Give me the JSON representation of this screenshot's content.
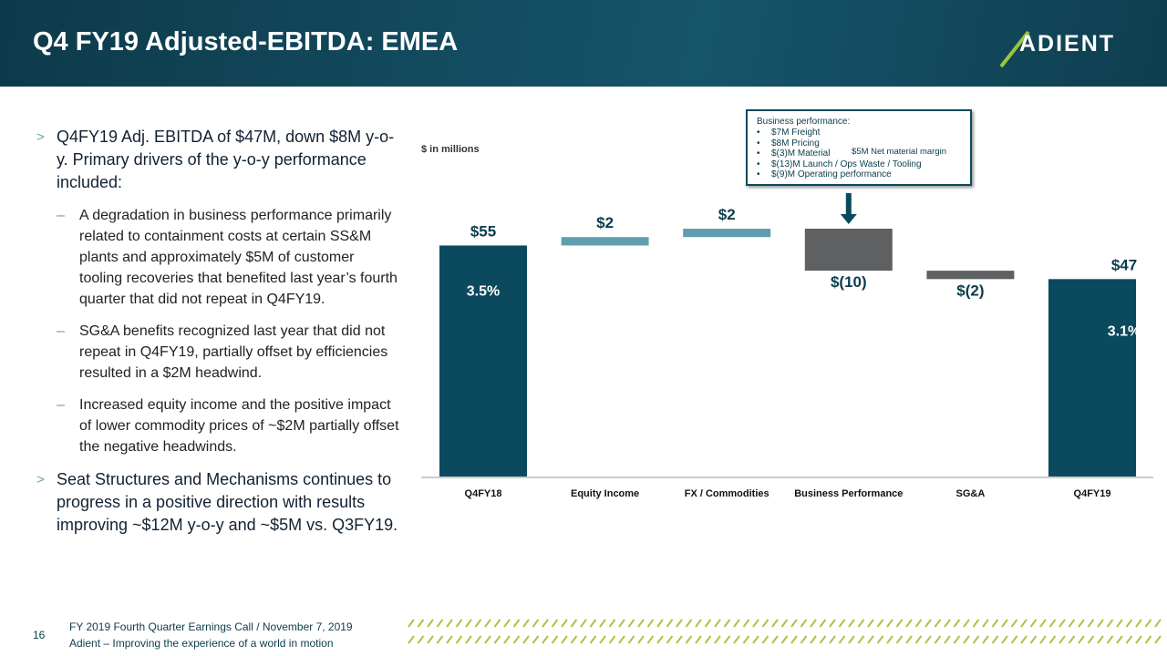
{
  "header": {
    "title": "Q4 FY19 Adjusted-EBITDA: EMEA",
    "logo": "ADIENT"
  },
  "bullets": [
    {
      "text": "Q4FY19 Adj. EBITDA of $47M, down $8M y-o-y.  Primary drivers of the y-o-y performance included:",
      "subs": [
        "A degradation in business performance primarily related to containment costs at certain SS&M plants and approximately $5M of customer tooling recoveries that benefited last year’s fourth quarter that did not repeat in Q4FY19.",
        "SG&A benefits recognized last year that did not repeat in Q4FY19, partially offset by efficiencies resulted in a $2M headwind.",
        "Increased equity income and the positive impact of lower commodity prices of ~$2M partially offset the negative headwinds."
      ]
    },
    {
      "text": "Seat Structures and Mechanisms continues to progress in a positive direction with results improving ~$12M y-o-y and ~$5M vs. Q3FY19.",
      "subs": []
    }
  ],
  "chart_data": {
    "type": "waterfall",
    "unit_label": "$ in millions",
    "categories": [
      "Q4FY18",
      "Equity Income",
      "FX / Commodities",
      "Business Performance",
      "SG&A",
      "Q4FY19"
    ],
    "values": [
      55,
      2,
      2,
      -10,
      -2,
      47
    ],
    "value_labels": [
      "$55",
      "$2",
      "$2",
      "$(10)",
      "$(2)",
      "$47"
    ],
    "margin_labels": [
      "3.5%",
      null,
      null,
      null,
      null,
      "3.1%"
    ],
    "colors": {
      "total": "#0b4a5e",
      "increase": "#5f9eae",
      "decrease": "#5f6062"
    }
  },
  "callout": {
    "title": "Business performance:",
    "items": [
      "$7M Freight",
      "$8M Pricing",
      "$(3)M Material",
      "$(13)M Launch / Ops Waste / Tooling",
      "$(9)M Operating performance"
    ],
    "brace_note": "$5M Net material margin"
  },
  "footer": {
    "page": "16",
    "line1": "FY 2019 Fourth Quarter Earnings Call / November 7, 2019",
    "line2": "Adient – Improving the experience of a world in motion"
  }
}
